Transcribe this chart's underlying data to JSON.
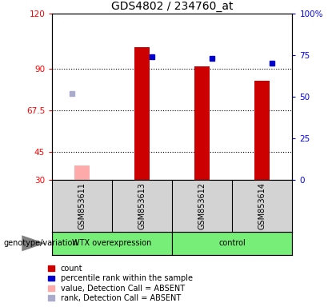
{
  "title": "GDS4802 / 234760_at",
  "samples": [
    "GSM853611",
    "GSM853613",
    "GSM853612",
    "GSM853614"
  ],
  "bar_values": [
    null,
    102.0,
    91.5,
    83.5
  ],
  "bar_absent": [
    37.5,
    null,
    null,
    null
  ],
  "rank_present": [
    null,
    74.0,
    73.0,
    70.0
  ],
  "rank_absent": [
    52.0,
    null,
    null,
    null
  ],
  "ylim_left": [
    30,
    120
  ],
  "ylim_right": [
    0,
    100
  ],
  "yticks_left": [
    30,
    45,
    67.5,
    90,
    120
  ],
  "ytick_labels_left": [
    "30",
    "45",
    "67.5",
    "90",
    "120"
  ],
  "yticks_right": [
    0,
    25,
    50,
    75,
    100
  ],
  "ytick_labels_right": [
    "0",
    "25",
    "50",
    "75",
    "100%"
  ],
  "hlines": [
    45,
    67.5,
    90
  ],
  "bar_width": 0.25,
  "absent_bar_color": "#ffaaaa",
  "absent_rank_color": "#aaaacc",
  "present_bar_color": "#cc0000",
  "present_rank_color": "#0000cc",
  "plot_bg": "#ffffff",
  "sample_area_bg": "#d3d3d3",
  "group_green": "#77ee77",
  "legend_labels": [
    "count",
    "percentile rank within the sample",
    "value, Detection Call = ABSENT",
    "rank, Detection Call = ABSENT"
  ],
  "legend_colors": [
    "#cc0000",
    "#0000cc",
    "#ffaaaa",
    "#aaaacc"
  ],
  "genotype_label": "genotype/variation",
  "title_fontsize": 10,
  "tick_fontsize": 7.5,
  "sample_fontsize": 7,
  "legend_fontsize": 7
}
